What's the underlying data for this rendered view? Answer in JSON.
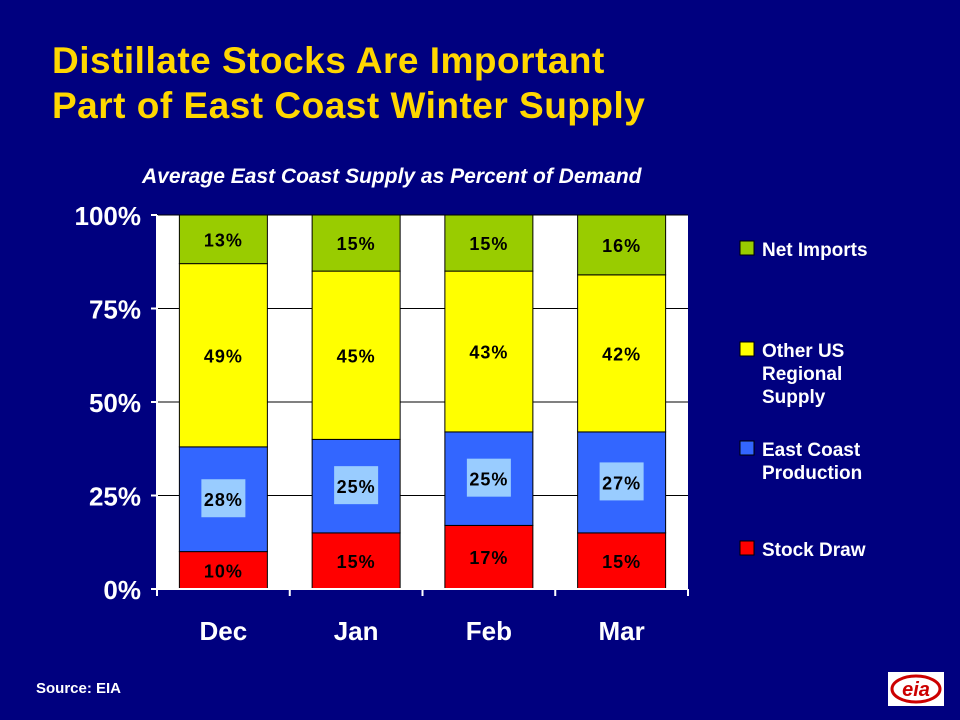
{
  "title_line1": "Distillate Stocks Are Important",
  "title_line2": "Part of East Coast Winter Supply",
  "source": "Source: EIA",
  "logo_text": "eia",
  "chart_data": {
    "type": "bar",
    "stacked": true,
    "title": "Average East Coast Supply as Percent of Demand",
    "categories": [
      "Dec",
      "Jan",
      "Feb",
      "Mar"
    ],
    "ylim": [
      0,
      100
    ],
    "yticks": [
      "0%",
      "25%",
      "50%",
      "75%",
      "100%"
    ],
    "legend_position": "right",
    "series": [
      {
        "name": "Stock Draw",
        "color": "#ff0000",
        "values": [
          10,
          15,
          17,
          15
        ],
        "labels": [
          "10%",
          "15%",
          "17%",
          "15%"
        ]
      },
      {
        "name": "East Coast Production",
        "color": "#3366ff",
        "values": [
          28,
          25,
          25,
          27
        ],
        "labels": [
          "28%",
          "25%",
          "25%",
          "27%"
        ]
      },
      {
        "name": "Other US Regional Supply",
        "color": "#ffff00",
        "values": [
          49,
          45,
          43,
          42
        ],
        "labels": [
          "49%",
          "45%",
          "43%",
          "42%"
        ]
      },
      {
        "name": "Net Imports",
        "color": "#99cc00",
        "values": [
          13,
          15,
          15,
          16
        ],
        "labels": [
          "13%",
          "15%",
          "15%",
          "16%"
        ]
      }
    ],
    "legend_order": [
      "Net Imports",
      "Other US Regional Supply",
      "East Coast Production",
      "Stock Draw"
    ]
  }
}
